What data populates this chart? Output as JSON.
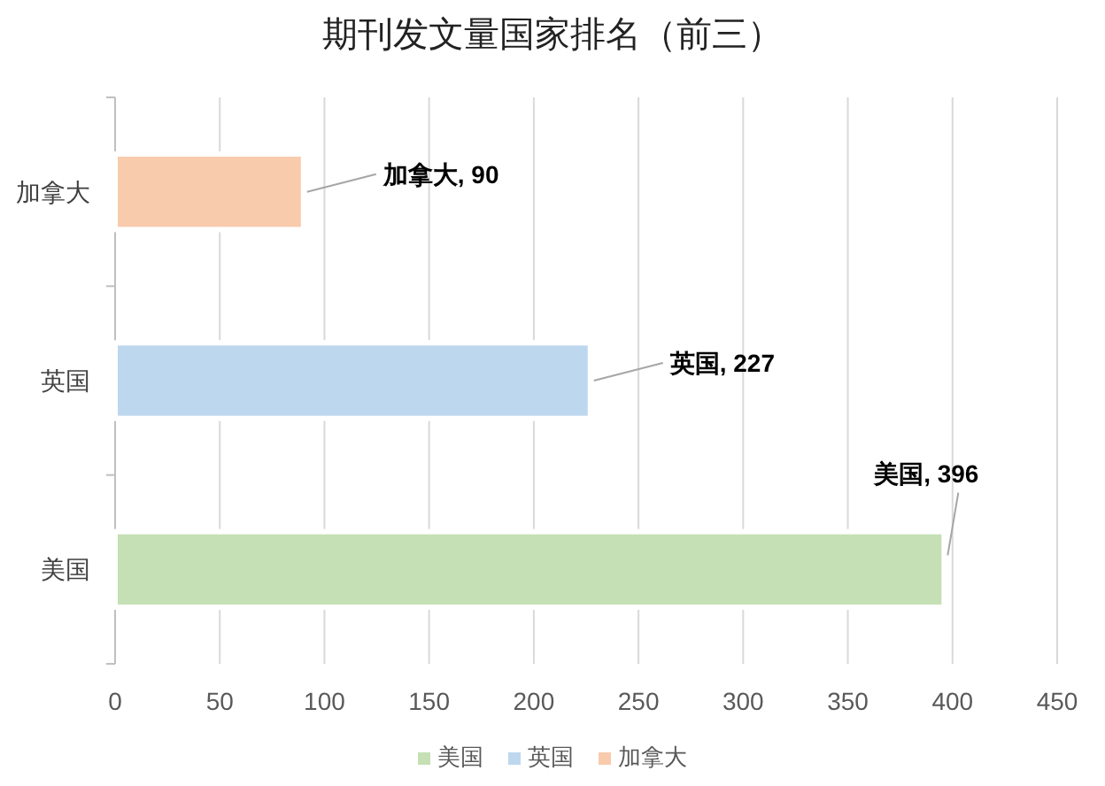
{
  "chart_data": {
    "type": "bar",
    "orientation": "horizontal",
    "stacked": true,
    "title": "期刊发文量国家排名（前三）",
    "categories": [
      "加拿大",
      "英国",
      "美国"
    ],
    "series": [
      {
        "name": "美国",
        "color": "#c5e0b4",
        "values": [
          null,
          null,
          396
        ],
        "value_labels": [
          null,
          null,
          "美国, 396"
        ]
      },
      {
        "name": "英国",
        "color": "#bdd7ee",
        "values": [
          null,
          227,
          null
        ],
        "value_labels": [
          null,
          "英国, 227",
          null
        ]
      },
      {
        "name": "加拿大",
        "color": "#f8cbad",
        "values": [
          90,
          null,
          null
        ],
        "value_labels": [
          "加拿大, 90",
          null,
          null
        ]
      }
    ],
    "xlim": [
      0,
      450
    ],
    "xticks": [
      0,
      50,
      100,
      150,
      200,
      250,
      300,
      350,
      400,
      450
    ],
    "grid": "x",
    "legend": "bottom"
  }
}
